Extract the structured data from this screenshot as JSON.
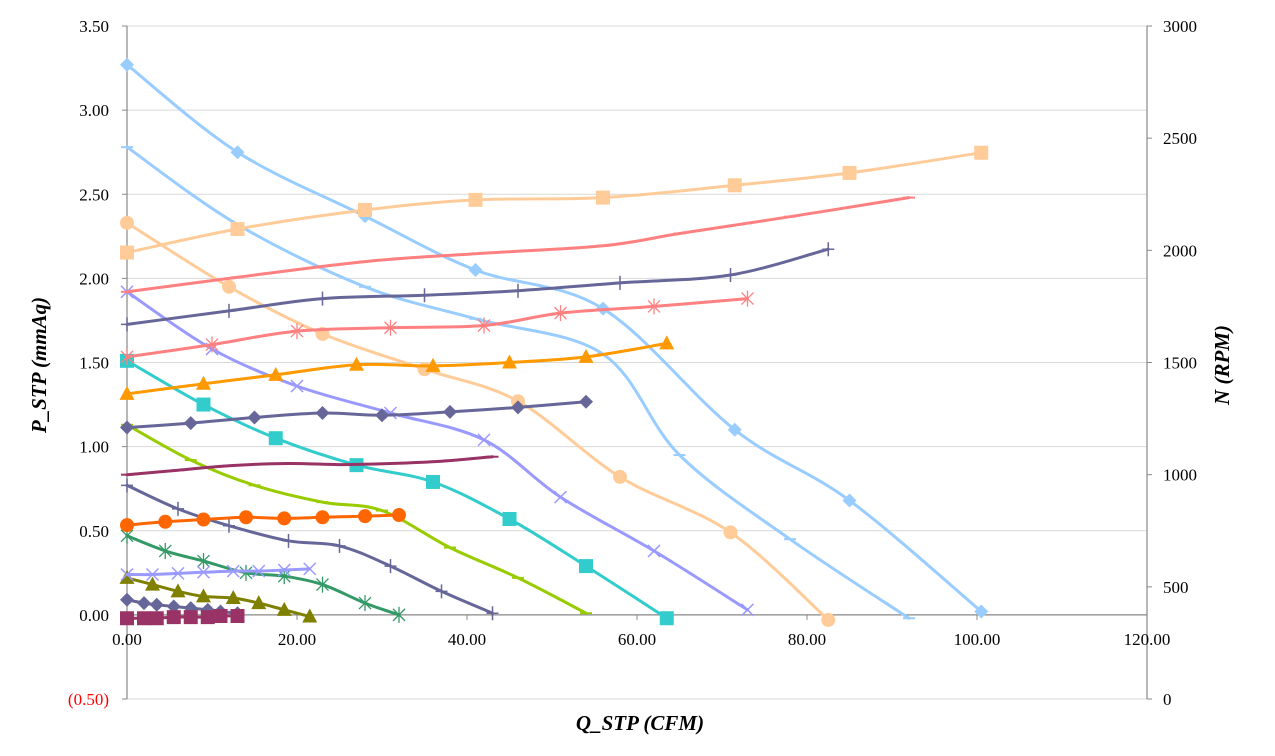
{
  "chart_data": {
    "type": "line",
    "title": "",
    "xlabel": "Q_STP (CFM)",
    "ylabel": "P_STP (mmAq)",
    "y2label": "N (RPM)",
    "xlim": [
      0,
      120
    ],
    "ylim": [
      -0.5,
      3.5
    ],
    "y2lim": [
      0,
      3000
    ],
    "grid": "horizontal-major",
    "legend": "none",
    "x_ticks": [
      0,
      20,
      40,
      60,
      80,
      100,
      120
    ],
    "x_tick_labels": [
      "0.00",
      "20.00",
      "40.00",
      "60.00",
      "80.00",
      "100.00",
      "120.00"
    ],
    "y_ticks": [
      -0.5,
      0,
      0.5,
      1,
      1.5,
      2,
      2.5,
      3,
      3.5
    ],
    "y_tick_labels": [
      "(0.50)",
      "0.00",
      "0.50",
      "1.00",
      "1.50",
      "2.00",
      "2.50",
      "3.00",
      "3.50"
    ],
    "y2_ticks": [
      0,
      500,
      1000,
      1500,
      2000,
      2500,
      3000
    ],
    "y2_tick_labels": [
      "0",
      "500",
      "1000",
      "1500",
      "2000",
      "2500",
      "3000"
    ],
    "series": [
      {
        "axis": "left",
        "kind": "P",
        "color": "#99ccff",
        "marker": "diamond",
        "x": [
          0,
          13,
          28,
          41,
          56,
          71.5,
          85,
          100.5
        ],
        "y": [
          3.27,
          2.75,
          2.37,
          2.05,
          1.82,
          1.1,
          0.68,
          0.02
        ]
      },
      {
        "axis": "left",
        "kind": "P",
        "color": "#99ccff",
        "marker": "dash",
        "x": [
          0,
          13,
          28,
          41,
          56,
          65,
          78,
          92
        ],
        "y": [
          2.78,
          2.32,
          1.95,
          1.76,
          1.55,
          0.95,
          0.45,
          -0.02
        ]
      },
      {
        "axis": "left",
        "kind": "P",
        "color": "#ffcc99",
        "marker": "circle",
        "x": [
          0,
          12,
          23,
          35,
          46,
          58,
          71,
          82.5
        ],
        "y": [
          2.33,
          1.95,
          1.67,
          1.46,
          1.27,
          0.82,
          0.49,
          -0.03
        ]
      },
      {
        "axis": "left",
        "kind": "P",
        "color": "#9999ff",
        "marker": "x",
        "x": [
          0,
          10,
          20,
          31,
          42,
          51,
          62,
          73
        ],
        "y": [
          1.92,
          1.58,
          1.36,
          1.2,
          1.04,
          0.7,
          0.38,
          0.03
        ]
      },
      {
        "axis": "left",
        "kind": "P",
        "color": "#33cccc",
        "marker": "square",
        "x": [
          0,
          9,
          17.5,
          27,
          36,
          45,
          54,
          63.5
        ],
        "y": [
          1.51,
          1.25,
          1.05,
          0.89,
          0.79,
          0.57,
          0.29,
          -0.02
        ]
      },
      {
        "axis": "left",
        "kind": "P",
        "color": "#99cc00",
        "marker": "dash",
        "x": [
          0,
          7.5,
          15,
          23,
          30,
          38,
          46,
          54
        ],
        "y": [
          1.13,
          0.92,
          0.77,
          0.67,
          0.62,
          0.4,
          0.22,
          0.01
        ]
      },
      {
        "axis": "left",
        "kind": "P",
        "color": "#666699",
        "marker": "plus",
        "x": [
          0,
          6,
          12,
          19,
          25,
          31,
          37,
          43
        ],
        "y": [
          0.77,
          0.63,
          0.53,
          0.44,
          0.41,
          0.29,
          0.14,
          0.01
        ]
      },
      {
        "axis": "left",
        "kind": "P",
        "color": "#339966",
        "marker": "star",
        "x": [
          0,
          4.5,
          9,
          14,
          18.5,
          23,
          28,
          32
        ],
        "y": [
          0.47,
          0.38,
          0.32,
          0.25,
          0.23,
          0.18,
          0.07,
          0.0
        ]
      },
      {
        "axis": "left",
        "kind": "P",
        "color": "#808000",
        "marker": "triangle",
        "x": [
          0,
          3,
          6,
          9,
          12.5,
          15.5,
          18.5,
          21.5
        ],
        "y": [
          0.22,
          0.18,
          0.14,
          0.11,
          0.1,
          0.07,
          0.03,
          -0.01
        ]
      },
      {
        "axis": "left",
        "kind": "P",
        "color": "#666699",
        "marker": "diamond",
        "x": [
          0,
          2,
          3.5,
          5.5,
          7.5,
          9.5,
          11,
          13
        ],
        "y": [
          0.09,
          0.07,
          0.06,
          0.05,
          0.04,
          0.03,
          0.02,
          0.01
        ]
      },
      {
        "axis": "right",
        "kind": "N",
        "color": "#ffcc99",
        "marker": "square",
        "x": [
          0,
          13,
          28,
          41,
          56,
          71.5,
          85,
          100.5
        ],
        "y": [
          1990,
          2095,
          2180,
          2225,
          2235,
          2290,
          2345,
          2435
        ]
      },
      {
        "axis": "right",
        "kind": "N",
        "color": "#ff8080",
        "marker": "dash",
        "x": [
          0,
          13,
          28,
          41,
          56,
          65,
          78,
          92
        ],
        "y": [
          1815,
          1880,
          1950,
          1985,
          2020,
          2075,
          2150,
          2235
        ]
      },
      {
        "axis": "right",
        "kind": "N",
        "color": "#666699",
        "marker": "plus",
        "x": [
          0,
          12,
          23,
          35,
          46,
          58,
          71,
          82.5
        ],
        "y": [
          1670,
          1730,
          1785,
          1800,
          1820,
          1855,
          1890,
          2005
        ]
      },
      {
        "axis": "right",
        "kind": "N",
        "color": "#ff8080",
        "marker": "star",
        "x": [
          0,
          10,
          20,
          31,
          42,
          51,
          62,
          73
        ],
        "y": [
          1525,
          1580,
          1640,
          1655,
          1665,
          1720,
          1750,
          1785
        ]
      },
      {
        "axis": "right",
        "kind": "N",
        "color": "#ff9900",
        "marker": "triangle",
        "x": [
          0,
          9,
          17.5,
          27,
          36,
          45,
          54,
          63.5
        ],
        "y": [
          1360,
          1405,
          1445,
          1490,
          1485,
          1500,
          1525,
          1585
        ]
      },
      {
        "axis": "right",
        "kind": "N",
        "color": "#666699",
        "marker": "diamond",
        "x": [
          0,
          7.5,
          15,
          23,
          30,
          38,
          46,
          54
        ],
        "y": [
          1210,
          1230,
          1255,
          1275,
          1265,
          1280,
          1300,
          1325
        ]
      },
      {
        "axis": "right",
        "kind": "N",
        "color": "#993366",
        "marker": "dash",
        "x": [
          0,
          6,
          12,
          19,
          25,
          31,
          37,
          43
        ],
        "y": [
          1000,
          1020,
          1040,
          1050,
          1045,
          1050,
          1060,
          1080
        ]
      },
      {
        "axis": "right",
        "kind": "N",
        "color": "#ff6600",
        "marker": "circle",
        "x": [
          0,
          4.5,
          9,
          14,
          18.5,
          23,
          28,
          32
        ],
        "y": [
          775,
          790,
          800,
          810,
          805,
          810,
          815,
          820
        ]
      },
      {
        "axis": "right",
        "kind": "N",
        "color": "#9999ff",
        "marker": "x",
        "x": [
          0,
          3,
          6,
          9,
          12.5,
          15.5,
          18.5,
          21.5
        ],
        "y": [
          555,
          555,
          560,
          565,
          570,
          570,
          575,
          580
        ]
      },
      {
        "axis": "right",
        "kind": "N",
        "color": "#993366",
        "marker": "square",
        "x": [
          0,
          2,
          3.5,
          5.5,
          7.5,
          9.5,
          11,
          13
        ],
        "y": [
          360,
          360,
          360,
          365,
          365,
          365,
          370,
          370
        ]
      }
    ]
  }
}
